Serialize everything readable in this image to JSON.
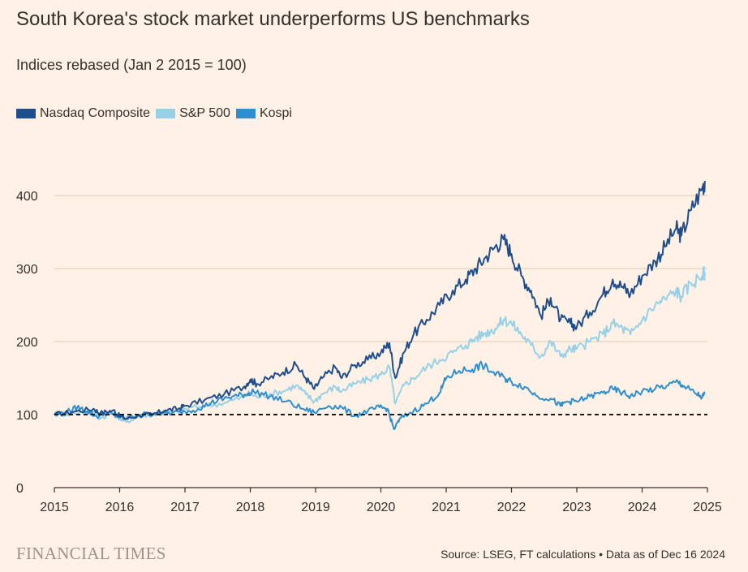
{
  "chart_data": {
    "type": "line",
    "title": "South Korea's stock market underperforms US benchmarks",
    "subtitle": "Indices rebased (Jan 2 2015 = 100)",
    "xlabel": "",
    "ylabel": "",
    "xlim": [
      2015,
      2025
    ],
    "ylim": [
      0,
      430
    ],
    "x_ticks": [
      "2015",
      "2016",
      "2017",
      "2018",
      "2019",
      "2020",
      "2021",
      "2022",
      "2023",
      "2024",
      "2025"
    ],
    "y_ticks": [
      "0",
      "100",
      "200",
      "300",
      "400"
    ],
    "reference_line": 100,
    "grid": true,
    "legend_position": "top-left",
    "series": [
      {
        "name": "Nasdaq Composite",
        "color": "#1f4e8c",
        "points": [
          [
            2015.0,
            100
          ],
          [
            2015.3,
            104
          ],
          [
            2015.6,
            108
          ],
          [
            2015.7,
            102
          ],
          [
            2015.9,
            106
          ],
          [
            2016.0,
            98
          ],
          [
            2016.1,
            94
          ],
          [
            2016.3,
            99
          ],
          [
            2016.5,
            100
          ],
          [
            2016.7,
            106
          ],
          [
            2016.9,
            108
          ],
          [
            2017.0,
            112
          ],
          [
            2017.3,
            120
          ],
          [
            2017.6,
            128
          ],
          [
            2017.9,
            138
          ],
          [
            2018.0,
            148
          ],
          [
            2018.1,
            142
          ],
          [
            2018.3,
            150
          ],
          [
            2018.5,
            158
          ],
          [
            2018.7,
            168
          ],
          [
            2018.85,
            150
          ],
          [
            2018.98,
            135
          ],
          [
            2019.1,
            150
          ],
          [
            2019.3,
            165
          ],
          [
            2019.4,
            150
          ],
          [
            2019.6,
            168
          ],
          [
            2019.8,
            175
          ],
          [
            2020.0,
            185
          ],
          [
            2020.13,
            198
          ],
          [
            2020.22,
            150
          ],
          [
            2020.35,
            185
          ],
          [
            2020.5,
            210
          ],
          [
            2020.7,
            230
          ],
          [
            2020.9,
            250
          ],
          [
            2021.1,
            270
          ],
          [
            2021.3,
            285
          ],
          [
            2021.45,
            300
          ],
          [
            2021.6,
            315
          ],
          [
            2021.75,
            330
          ],
          [
            2021.88,
            340
          ],
          [
            2022.0,
            320
          ],
          [
            2022.15,
            290
          ],
          [
            2022.3,
            270
          ],
          [
            2022.45,
            235
          ],
          [
            2022.6,
            260
          ],
          [
            2022.75,
            230
          ],
          [
            2022.9,
            225
          ],
          [
            2023.0,
            220
          ],
          [
            2023.2,
            240
          ],
          [
            2023.4,
            265
          ],
          [
            2023.55,
            285
          ],
          [
            2023.7,
            275
          ],
          [
            2023.82,
            265
          ],
          [
            2024.0,
            290
          ],
          [
            2024.2,
            310
          ],
          [
            2024.35,
            330
          ],
          [
            2024.52,
            355
          ],
          [
            2024.6,
            345
          ],
          [
            2024.75,
            380
          ],
          [
            2024.92,
            410
          ],
          [
            2024.96,
            420
          ]
        ]
      },
      {
        "name": "S&P 500",
        "color": "#97d1e8",
        "points": [
          [
            2015.0,
            100
          ],
          [
            2015.3,
            102
          ],
          [
            2015.6,
            104
          ],
          [
            2015.7,
            95
          ],
          [
            2015.9,
            102
          ],
          [
            2016.0,
            95
          ],
          [
            2016.1,
            90
          ],
          [
            2016.3,
            98
          ],
          [
            2016.5,
            100
          ],
          [
            2016.7,
            102
          ],
          [
            2016.9,
            104
          ],
          [
            2017.0,
            108
          ],
          [
            2017.3,
            112
          ],
          [
            2017.6,
            116
          ],
          [
            2017.9,
            124
          ],
          [
            2018.0,
            130
          ],
          [
            2018.1,
            124
          ],
          [
            2018.3,
            128
          ],
          [
            2018.5,
            132
          ],
          [
            2018.7,
            140
          ],
          [
            2018.85,
            128
          ],
          [
            2018.98,
            118
          ],
          [
            2019.1,
            128
          ],
          [
            2019.3,
            138
          ],
          [
            2019.4,
            132
          ],
          [
            2019.6,
            142
          ],
          [
            2019.8,
            148
          ],
          [
            2020.0,
            155
          ],
          [
            2020.13,
            165
          ],
          [
            2020.22,
            115
          ],
          [
            2020.35,
            140
          ],
          [
            2020.5,
            150
          ],
          [
            2020.7,
            165
          ],
          [
            2020.9,
            175
          ],
          [
            2021.1,
            185
          ],
          [
            2021.3,
            195
          ],
          [
            2021.45,
            205
          ],
          [
            2021.6,
            212
          ],
          [
            2021.75,
            218
          ],
          [
            2021.88,
            230
          ],
          [
            2022.0,
            225
          ],
          [
            2022.15,
            210
          ],
          [
            2022.3,
            195
          ],
          [
            2022.45,
            180
          ],
          [
            2022.6,
            200
          ],
          [
            2022.75,
            180
          ],
          [
            2022.9,
            190
          ],
          [
            2023.0,
            190
          ],
          [
            2023.2,
            200
          ],
          [
            2023.4,
            210
          ],
          [
            2023.55,
            225
          ],
          [
            2023.7,
            218
          ],
          [
            2023.82,
            210
          ],
          [
            2024.0,
            230
          ],
          [
            2024.2,
            250
          ],
          [
            2024.35,
            258
          ],
          [
            2024.52,
            270
          ],
          [
            2024.6,
            262
          ],
          [
            2024.75,
            280
          ],
          [
            2024.92,
            290
          ],
          [
            2024.96,
            295
          ]
        ]
      },
      {
        "name": "Kospi",
        "color": "#2e8fd0",
        "points": [
          [
            2015.0,
            100
          ],
          [
            2015.2,
            104
          ],
          [
            2015.35,
            110
          ],
          [
            2015.5,
            105
          ],
          [
            2015.65,
            97
          ],
          [
            2015.8,
            103
          ],
          [
            2015.95,
            98
          ],
          [
            2016.1,
            95
          ],
          [
            2016.3,
            100
          ],
          [
            2016.6,
            102
          ],
          [
            2016.8,
            102
          ],
          [
            2017.0,
            104
          ],
          [
            2017.2,
            108
          ],
          [
            2017.4,
            116
          ],
          [
            2017.6,
            122
          ],
          [
            2017.8,
            126
          ],
          [
            2017.95,
            128
          ],
          [
            2018.05,
            132
          ],
          [
            2018.3,
            125
          ],
          [
            2018.55,
            118
          ],
          [
            2018.8,
            108
          ],
          [
            2018.98,
            103
          ],
          [
            2019.2,
            112
          ],
          [
            2019.4,
            110
          ],
          [
            2019.6,
            98
          ],
          [
            2019.8,
            105
          ],
          [
            2019.98,
            110
          ],
          [
            2020.1,
            108
          ],
          [
            2020.2,
            80
          ],
          [
            2020.3,
            95
          ],
          [
            2020.5,
            105
          ],
          [
            2020.7,
            115
          ],
          [
            2020.9,
            130
          ],
          [
            2021.0,
            150
          ],
          [
            2021.2,
            160
          ],
          [
            2021.4,
            162
          ],
          [
            2021.55,
            168
          ],
          [
            2021.7,
            158
          ],
          [
            2021.9,
            150
          ],
          [
            2022.0,
            145
          ],
          [
            2022.2,
            138
          ],
          [
            2022.4,
            125
          ],
          [
            2022.6,
            122
          ],
          [
            2022.75,
            112
          ],
          [
            2022.85,
            118
          ],
          [
            2023.0,
            118
          ],
          [
            2023.2,
            125
          ],
          [
            2023.4,
            130
          ],
          [
            2023.55,
            135
          ],
          [
            2023.7,
            130
          ],
          [
            2023.82,
            125
          ],
          [
            2024.0,
            132
          ],
          [
            2024.2,
            135
          ],
          [
            2024.4,
            140
          ],
          [
            2024.55,
            145
          ],
          [
            2024.65,
            138
          ],
          [
            2024.8,
            130
          ],
          [
            2024.92,
            124
          ],
          [
            2024.96,
            128
          ]
        ]
      }
    ]
  },
  "footer": {
    "brand": "FINANCIAL TIMES",
    "source": "Source: LSEG, FT calculations • Data as of Dec 16 2024"
  }
}
